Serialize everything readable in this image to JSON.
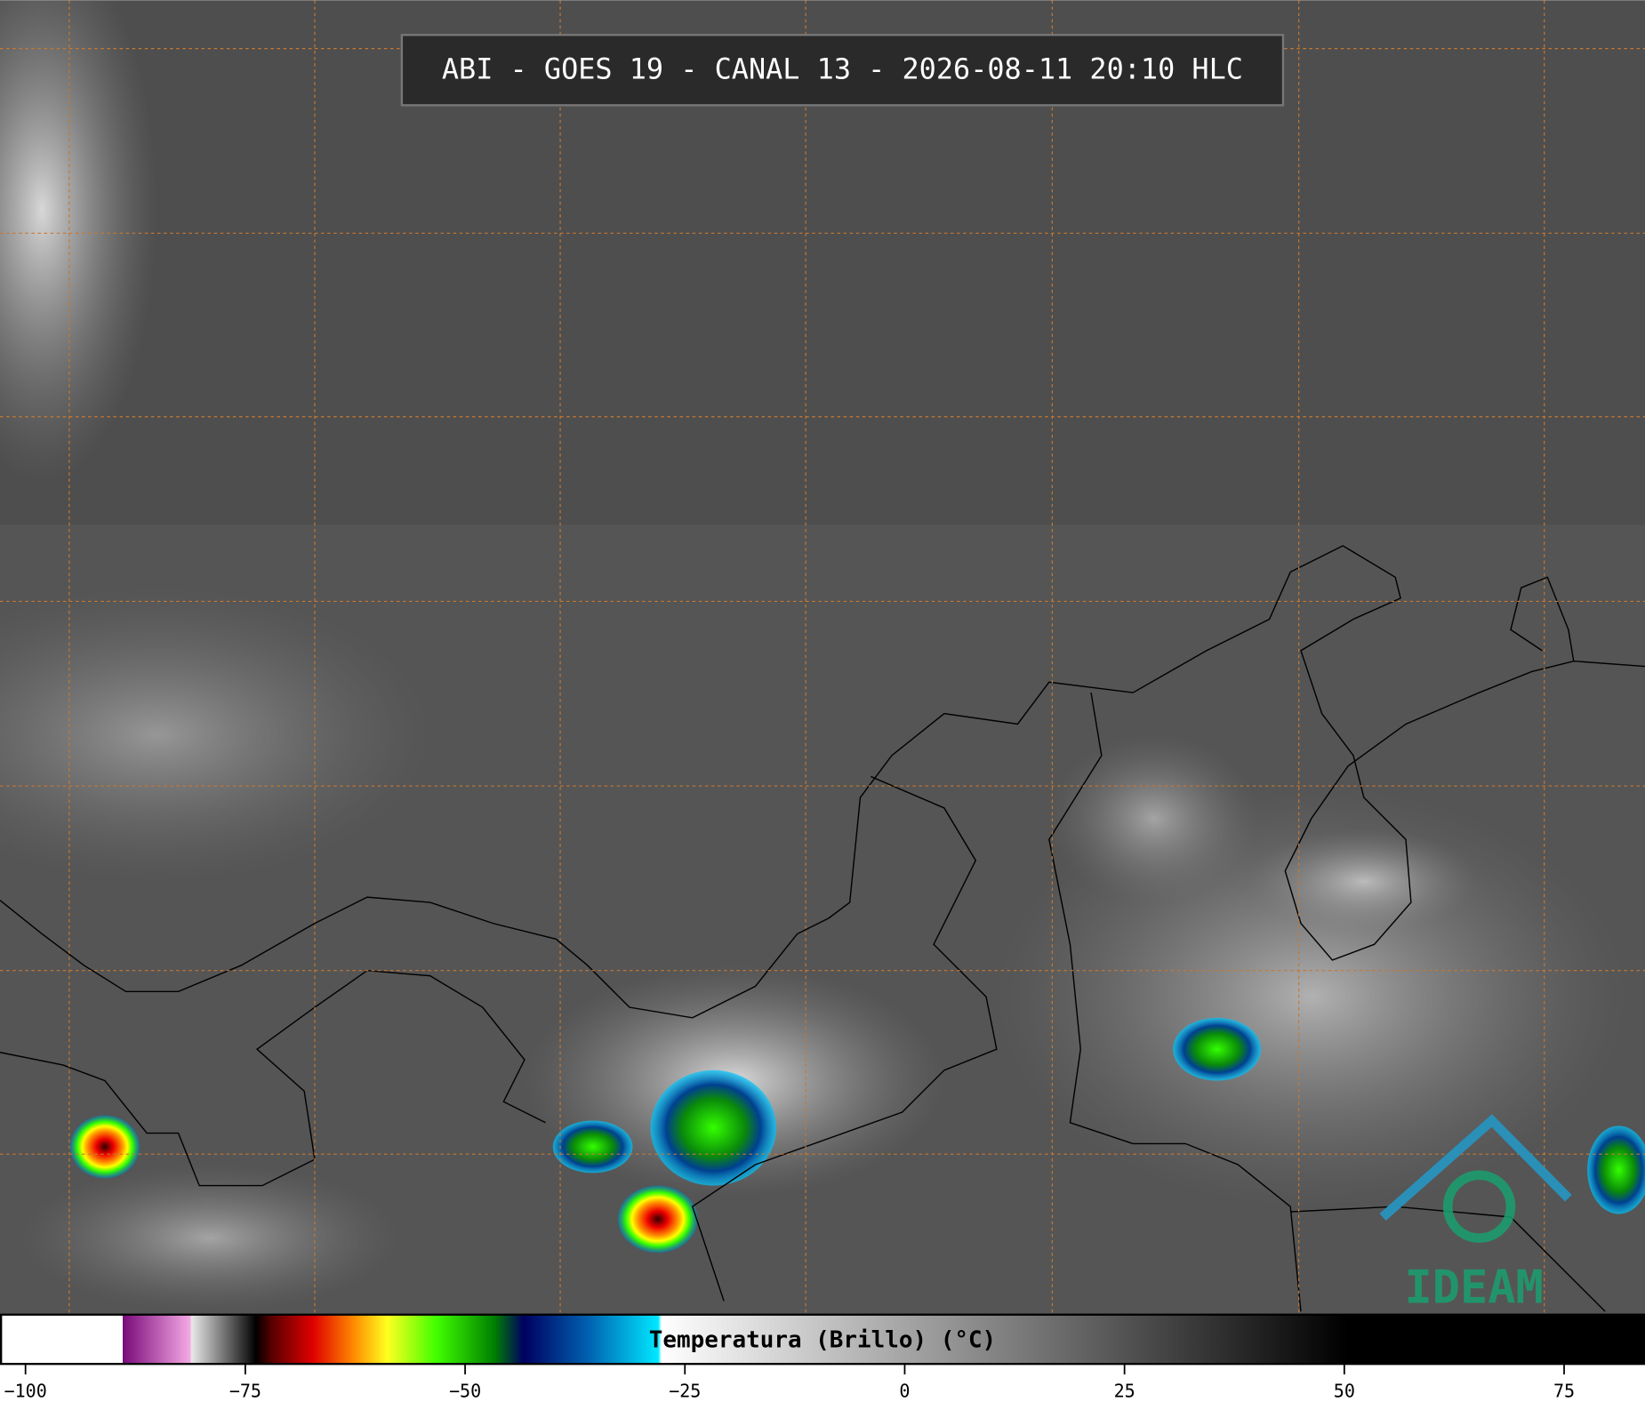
{
  "title": "ABI - GOES 19 - CANAL 13 - 2026-08-11 20:10 HLC",
  "logo": "IDEAM",
  "colorbar": {
    "label": "Temperatura (Brillo) (°C)",
    "lim": [
      -102.9,
      84.2
    ],
    "ticks": [
      {
        "value": -100,
        "label": "−100"
      },
      {
        "value": -75,
        "label": "−75"
      },
      {
        "value": -50,
        "label": "−50"
      },
      {
        "value": -25,
        "label": "−25"
      },
      0,
      25,
      50,
      75
    ]
  }
}
